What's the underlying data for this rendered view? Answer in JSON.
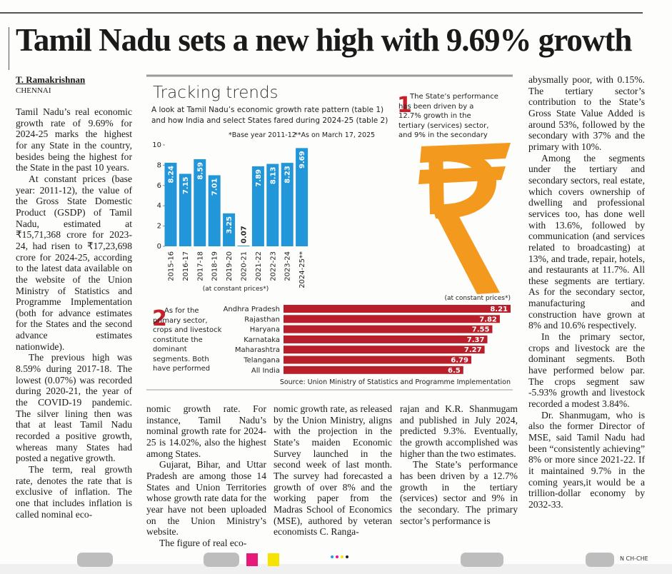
{
  "headline": "Tamil Nadu sets a new high with 9.69% growth",
  "byline": {
    "author": "T. Ramakrishnan",
    "location": "CHENNAI"
  },
  "article": {
    "columns": [
      {
        "paragraphs": [
          "Tamil Nadu’s real economic growth rate of 9.69% for 2024-25 marks the highest for any State in the country, besides being the highest for the State in the past 10 years.",
          "At constant prices (base year: 2011-12), the value of the Gross State Domestic Product (GSDP) of Tamil Nadu, estimated at ₹15,71,368 crore for 2023-24, had risen to ₹17,23,698 crore for 2024-25, according to the latest data available on the website of the Union Ministry of Statistics and Programme Implementation (both for advance estimates for the States and the second advance estimates nationwide).",
          "The previous high was 8.59% during 2017-18. The lowest (0.07%) was recorded during 2020-21, the year of the COVID-19 pandemic. The silver lining then was that at least Tamil Nadu recorded a positive growth, whereas many States had posted a negative growth.",
          "The term, real growth rate, denotes the rate that is exclusive of inflation. The one that includes inflation is called nominal eco-"
        ]
      },
      {
        "paragraphs": [
          "nomic growth rate. For instance, Tamil Nadu’s nominal growth rate for 2024-25 is 14.02%, also the highest among States.",
          "Gujarat, Bihar, and Uttar Pradesh are among those 14 States and Union Territories whose growth rate data for the year have not been uploaded on the Union Ministry’s website.",
          "The figure of real eco-"
        ]
      },
      {
        "paragraphs": [
          "nomic growth rate, as released by the Union Ministry, aligns with the projection in the State’s maiden Economic Survey launched in the second week of last month. The survey had forecasted a growth of over 8% and the working paper from the Madras School of Economics (MSE), authored by veteran economists C. Ranga-"
        ]
      },
      {
        "paragraphs": [
          "rajan and K.R. Shanmugam and published in July 2024, predicted 9.3%. Eventually, the growth accomplished was higher than the two estimates.",
          "The State’s performance has been driven by a 12.7% growth in the tertiary (services) sector and 9% in the secondary. The primary sector’s performance is"
        ]
      },
      {
        "paragraphs": [
          "abysmally poor, with 0.15%. The tertiary sector’s contribution to the State’s Gross State Value Added is around 53%, followed by the secondary with 37% and the primary with 10%.",
          "Among the segments under the tertiary and secondary sectors, real estate, which covers ownership of dwelling and professional services too, has done well with 13.6%, followed by communication (and services related to broadcasting) at 13%, and trade, repair, hotels, and restaurants at 11.7%. All these segments are tertiary. As for the secondary sector, manufacturing and construction have grown at 8% and 10.6% respectively.",
          "In the primary sector, crops and livestock are the dominant segments. Both have performed below par. The crops segment saw -5.93% growth and livestock recorded a modest 3.84%.",
          "Dr. Shanmugam, who is also the former Director of MSE, said Tamil Nadu had been “consistently achieving” 8% or more since 2021-22. If it maintained 9.7% in the coming years,it would be a trillion-dollar economy by 2032-33."
        ]
      }
    ]
  },
  "infographic": {
    "title": "Tracking trends",
    "subtitle": "A look at Tamil Nadu’s economic growth rate pattern (table 1) and how India and select States fared during 2024-25 (table 2)",
    "notes": [
      "*Base year 2011-12",
      "**As on March 17, 2025"
    ],
    "chart1": {
      "type": "bar",
      "number": "1",
      "note": "The State’s performance has been driven by a 12.7% growth in the tertiary (services) sector, and 9% in the secondary",
      "categories": [
        "2015-16",
        "2016-17",
        "2017-18",
        "2018-19",
        "2019-20",
        "2020-21",
        "2021-22",
        "2022-23",
        "2023-24",
        "2024-25**"
      ],
      "values": [
        8.24,
        7.15,
        8.59,
        7.01,
        3.25,
        0.07,
        7.89,
        8.13,
        8.23,
        9.69
      ],
      "color": "#2196d8",
      "ylim": [
        0,
        10
      ],
      "yticks": [
        0,
        2,
        4,
        6,
        8,
        10
      ],
      "x_label": "(at constant prices*)"
    },
    "chart2": {
      "type": "hbar",
      "number": "2",
      "note": "As for the primary sector, crops and livestock constitute the dominant segments. Both have performed below par",
      "categories": [
        "Andhra Pradesh",
        "Rajasthan",
        "Haryana",
        "Karnataka",
        "Maharashtra",
        "Telangana",
        "All India"
      ],
      "values": [
        8.21,
        7.82,
        7.55,
        7.37,
        7.27,
        6.79,
        6.5
      ],
      "color": "#b81f2a",
      "label": "(at constant prices*)"
    },
    "source": "Source: Union Ministry of Statistics and Programme Implementation"
  },
  "footer": {
    "code": "N CH-CHE"
  }
}
